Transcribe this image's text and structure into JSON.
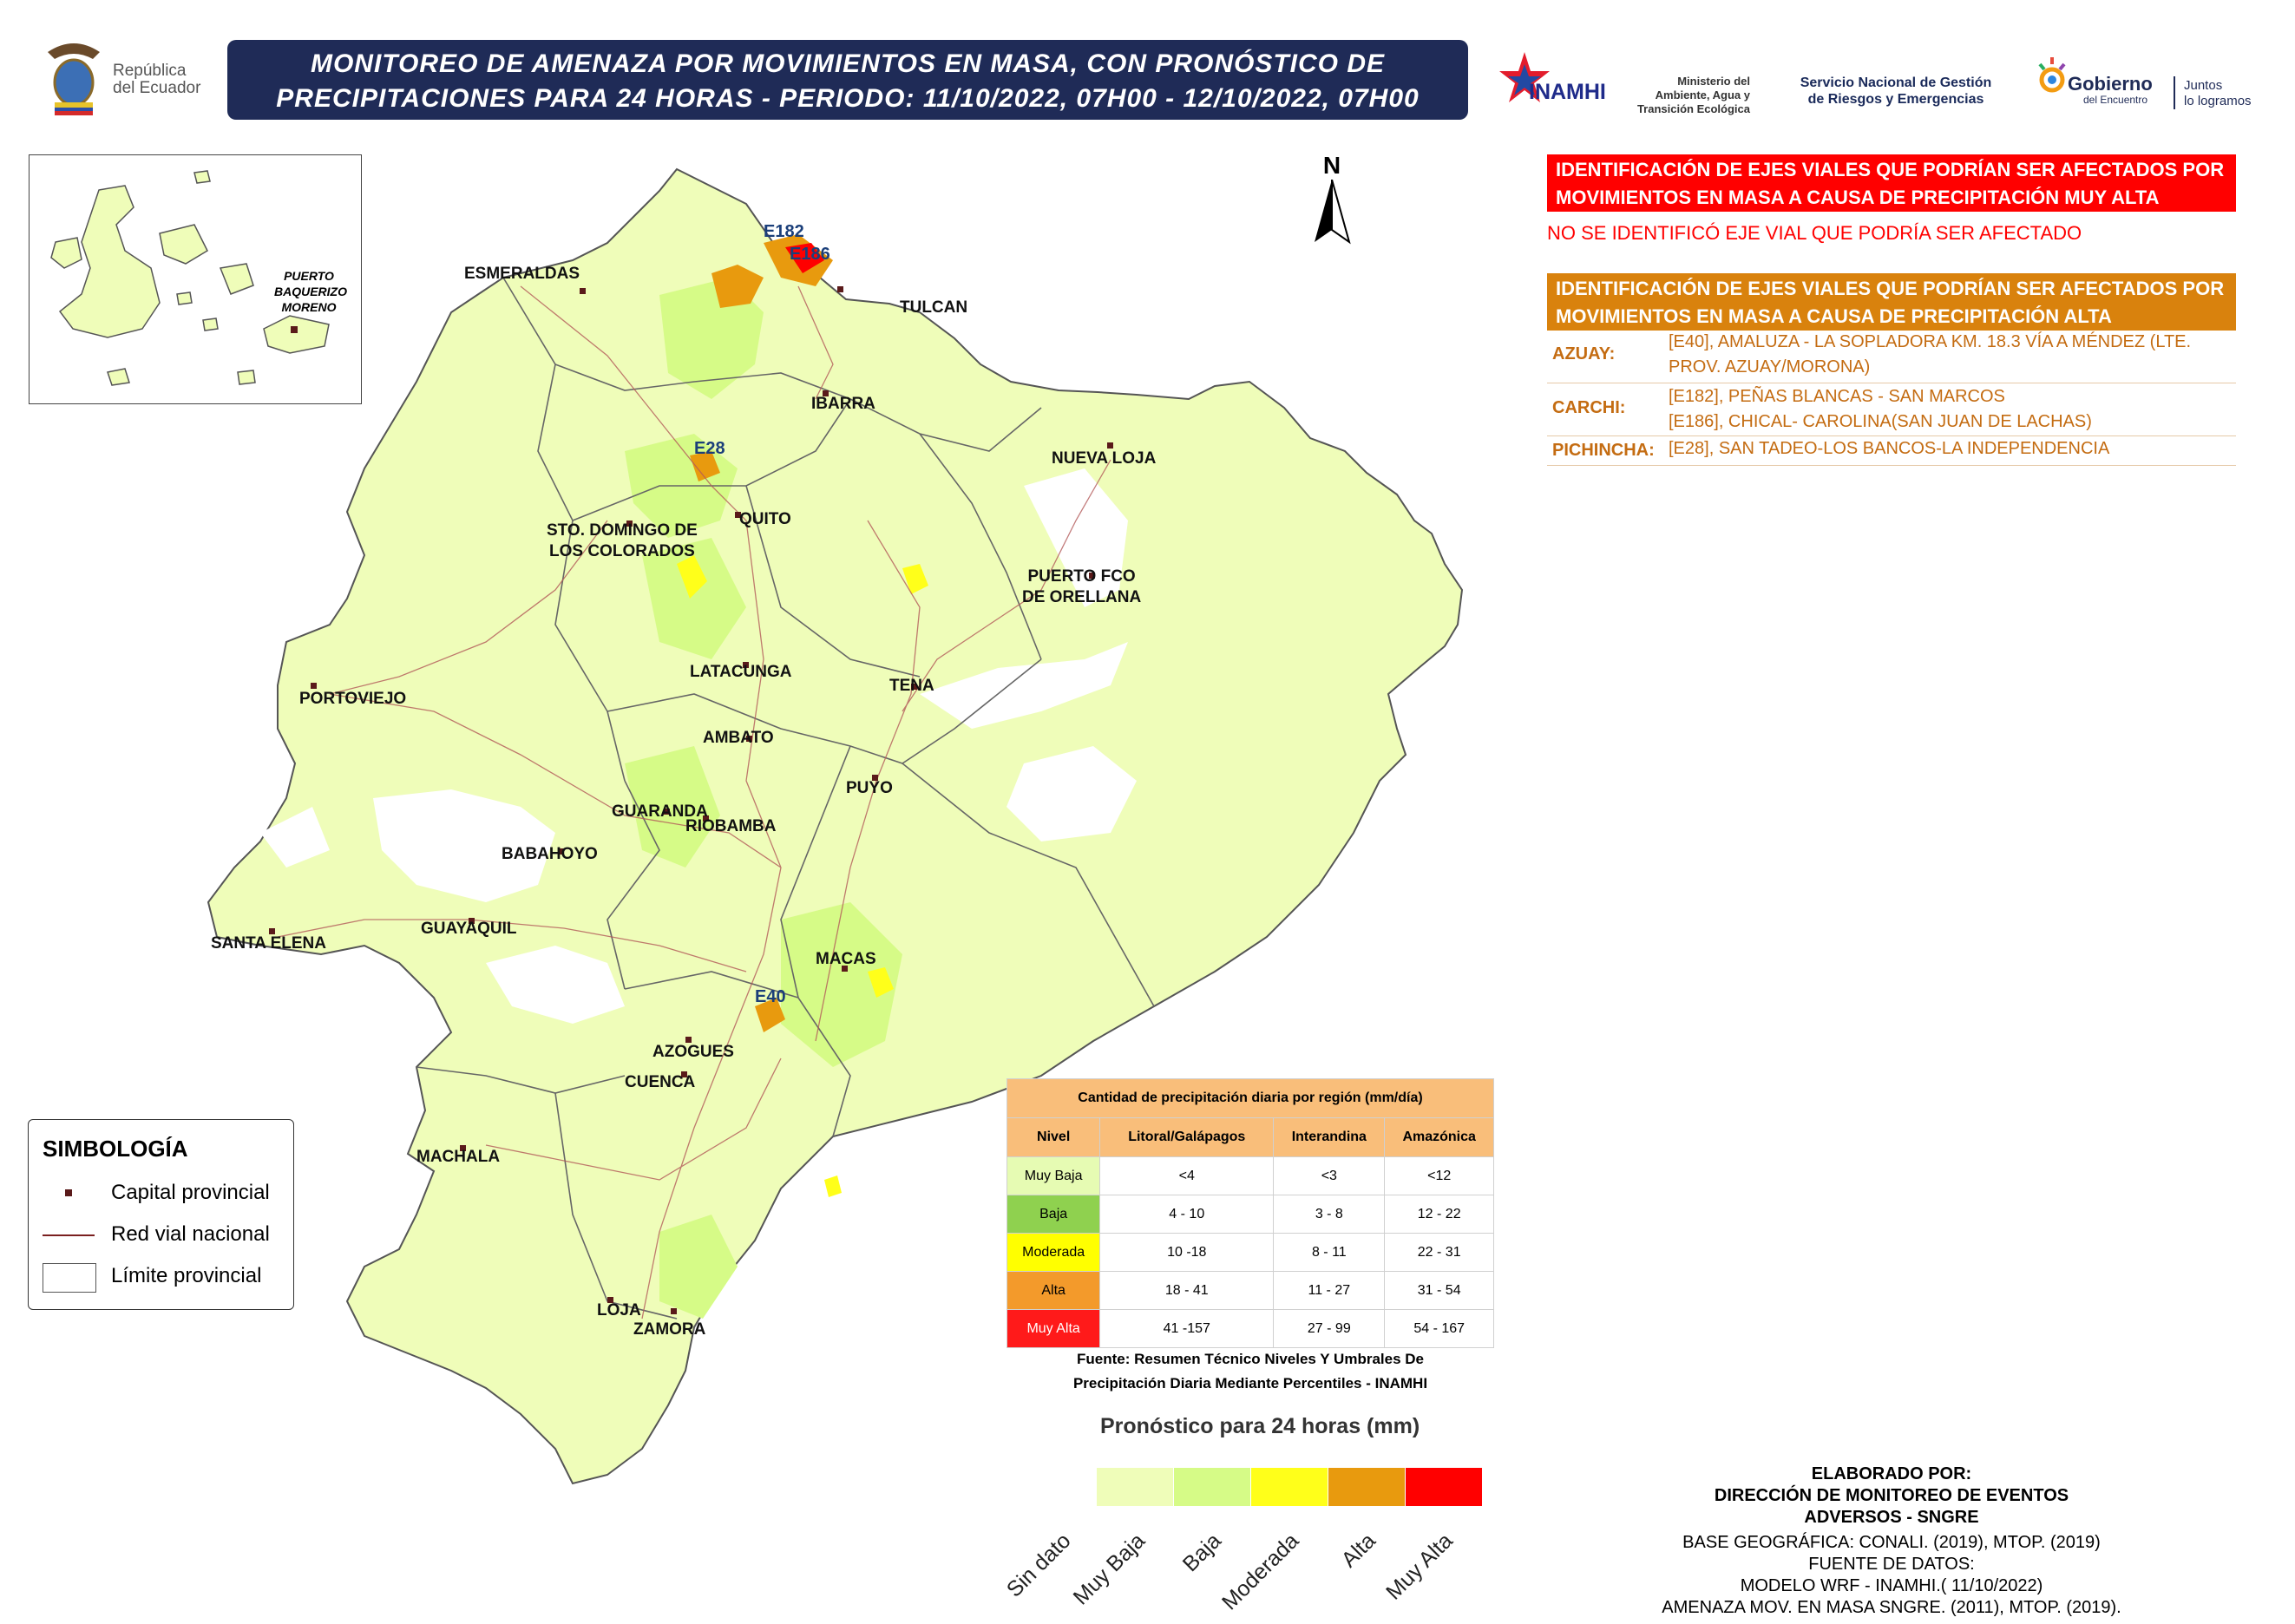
{
  "title": {
    "line1": "MONITOREO DE AMENAZA POR MOVIMIENTOS EN MASA, CON PRONÓSTICO DE",
    "line2": "PRECIPITACIONES PARA 24 HORAS - PERIODO: 11/10/2022, 07H00 - 12/10/2022, 07H00"
  },
  "logos": {
    "republica": "República del Ecuador",
    "republica_l1": "República",
    "republica_l2": "del Ecuador",
    "inamhi": "INAMHI",
    "ministerio_l1": "Ministerio del",
    "ministerio_l2": "Ambiente, Agua y",
    "ministerio_l3": "Transición Ecológica",
    "sngre_l1": "Servicio Nacional de Gestión",
    "sngre_l2": "de Riesgos y Emergencias",
    "gobierno": "Gobierno",
    "gobierno_sub": "del Encuentro",
    "juntos_l1": "Juntos",
    "juntos_l2": "lo logramos"
  },
  "north_label": "N",
  "inset": {
    "label_l1": "PUERTO",
    "label_l2": "BAQUERIZO",
    "label_l3": "MORENO"
  },
  "cities": {
    "esmeraldas": "ESMERALDAS",
    "tulcan": "TULCAN",
    "ibarra": "IBARRA",
    "nueva_loja": "NUEVA LOJA",
    "quito": "QUITO",
    "sto_domingo_l1": "STO. DOMINGO DE",
    "sto_domingo_l2": "LOS COLORADOS",
    "puerto_fco_l1": "PUERTO FCO",
    "puerto_fco_l2": "DE ORELLANA",
    "latacunga": "LATACUNGA",
    "tena": "TENA",
    "portoviejo": "PORTOVIEJO",
    "ambato": "AMBATO",
    "puyo": "PUYO",
    "guaranda": "GUARANDA",
    "riobamba": "RIOBAMBA",
    "babahoyo": "BABAHOYO",
    "santa_elena": "SANTA ELENA",
    "guayaquil": "GUAYAQUIL",
    "macas": "MACAS",
    "azogues": "AZOGUES",
    "cuenca": "CUENCA",
    "machala": "MACHALA",
    "loja": "LOJA",
    "zamora": "ZAMORA"
  },
  "road_tags": {
    "e182": "E182",
    "e186": "E186",
    "e28": "E28",
    "e40": "E40"
  },
  "very_high": {
    "heading_l1": "IDENTIFICACIÓN DE EJES VIALES QUE PODRÍAN SER AFECTADOS POR",
    "heading_l2": "MOVIMIENTOS EN MASA A CAUSA DE  PRECIPITACIÓN MUY ALTA",
    "note": "NO SE IDENTIFICÓ EJE VIAL QUE PODRÍA SER AFECTADO"
  },
  "high": {
    "heading_l1": "IDENTIFICACIÓN DE EJES VIALES QUE PODRÍAN SER AFECTADOS POR",
    "heading_l2": "MOVIMIENTOS EN MASA A CAUSA DE  PRECIPITACIÓN ALTA",
    "rows": [
      {
        "province": "AZUAY:",
        "desc_l1": "[E40], AMALUZA - LA SOPLADORA KM. 18.3 VÍA A MÉNDEZ (LTE.",
        "desc_l2": "PROV. AZUAY/MORONA)"
      },
      {
        "province": "CARCHI:",
        "desc_l1": "[E182], PEÑAS BLANCAS - SAN MARCOS",
        "desc_l2": "[E186], CHICAL- CAROLINA(SAN JUAN DE LACHAS)"
      },
      {
        "province": "PICHINCHA:",
        "desc_l1": "[E28], SAN TADEO-LOS BANCOS-LA INDEPENDENCIA",
        "desc_l2": ""
      }
    ]
  },
  "legend": {
    "title": "SIMBOLOGÍA",
    "capital": "Capital provincial",
    "road": "Red vial nacional",
    "limit": "Límite provincial"
  },
  "precip_table": {
    "title": "Cantidad de precipitación diaria por región (mm/día)",
    "headers": [
      "Nivel",
      "Litoral/Galápagos",
      "Interandina",
      "Amazónica"
    ],
    "rows": [
      {
        "level": "Muy Baja",
        "color": "#e6fbb3",
        "litoral": "<4",
        "interandina": "<3",
        "amazonica": "<12"
      },
      {
        "level": "Baja",
        "color": "#8fd14f",
        "litoral": "4 - 10",
        "interandina": "3 - 8",
        "amazonica": "12 - 22"
      },
      {
        "level": "Moderada",
        "color": "#ffff00",
        "litoral": "10 -18",
        "interandina": "8 - 11",
        "amazonica": "22 - 31"
      },
      {
        "level": "Alta",
        "color": "#f39a2b",
        "litoral": "18 - 41",
        "interandina": "11 - 27",
        "amazonica": "31 - 54"
      },
      {
        "level": "Muy Alta",
        "color": "#ff1a1a",
        "litoral": "41 -157",
        "interandina": "27 - 99",
        "amazonica": "54 - 167"
      }
    ],
    "source_l1": "Fuente: Resumen Técnico Niveles Y Umbrales De",
    "source_l2": "Precipitación Diaria Mediante Percentiles - INAMHI"
  },
  "forecast_scale": {
    "title": "Pronóstico para 24 horas (mm)",
    "classes": [
      {
        "label": "Sin dato",
        "color": "#ffffff"
      },
      {
        "label": "Muy Baja",
        "color": "#effdb9"
      },
      {
        "label": "Baja",
        "color": "#d6fb87"
      },
      {
        "label": "Moderada",
        "color": "#ffff1a"
      },
      {
        "label": "Alta",
        "color": "#e89a0e"
      },
      {
        "label": "Muy Alta",
        "color": "#ff0000"
      }
    ]
  },
  "credits": {
    "l1": "ELABORADO POR:",
    "l2": "DIRECCIÓN DE MONITOREO DE EVENTOS",
    "l3": "ADVERSOS - SNGRE",
    "l4": "BASE GEOGRÁFICA: CONALI. (2019), MTOP. (2019)",
    "l5": "FUENTE DE DATOS:",
    "l6": "MODELO WRF - INAMHI.( 11/10/2022)",
    "l7": "AMENAZA MOV. EN MASA SNGRE. (2011), MTOP. (2019)."
  },
  "colors": {
    "title_bg": "#1f2b57",
    "very_high": "#ff0000",
    "high": "#d9820d",
    "land": "#effdb9",
    "land_mid": "#d6fb87"
  }
}
